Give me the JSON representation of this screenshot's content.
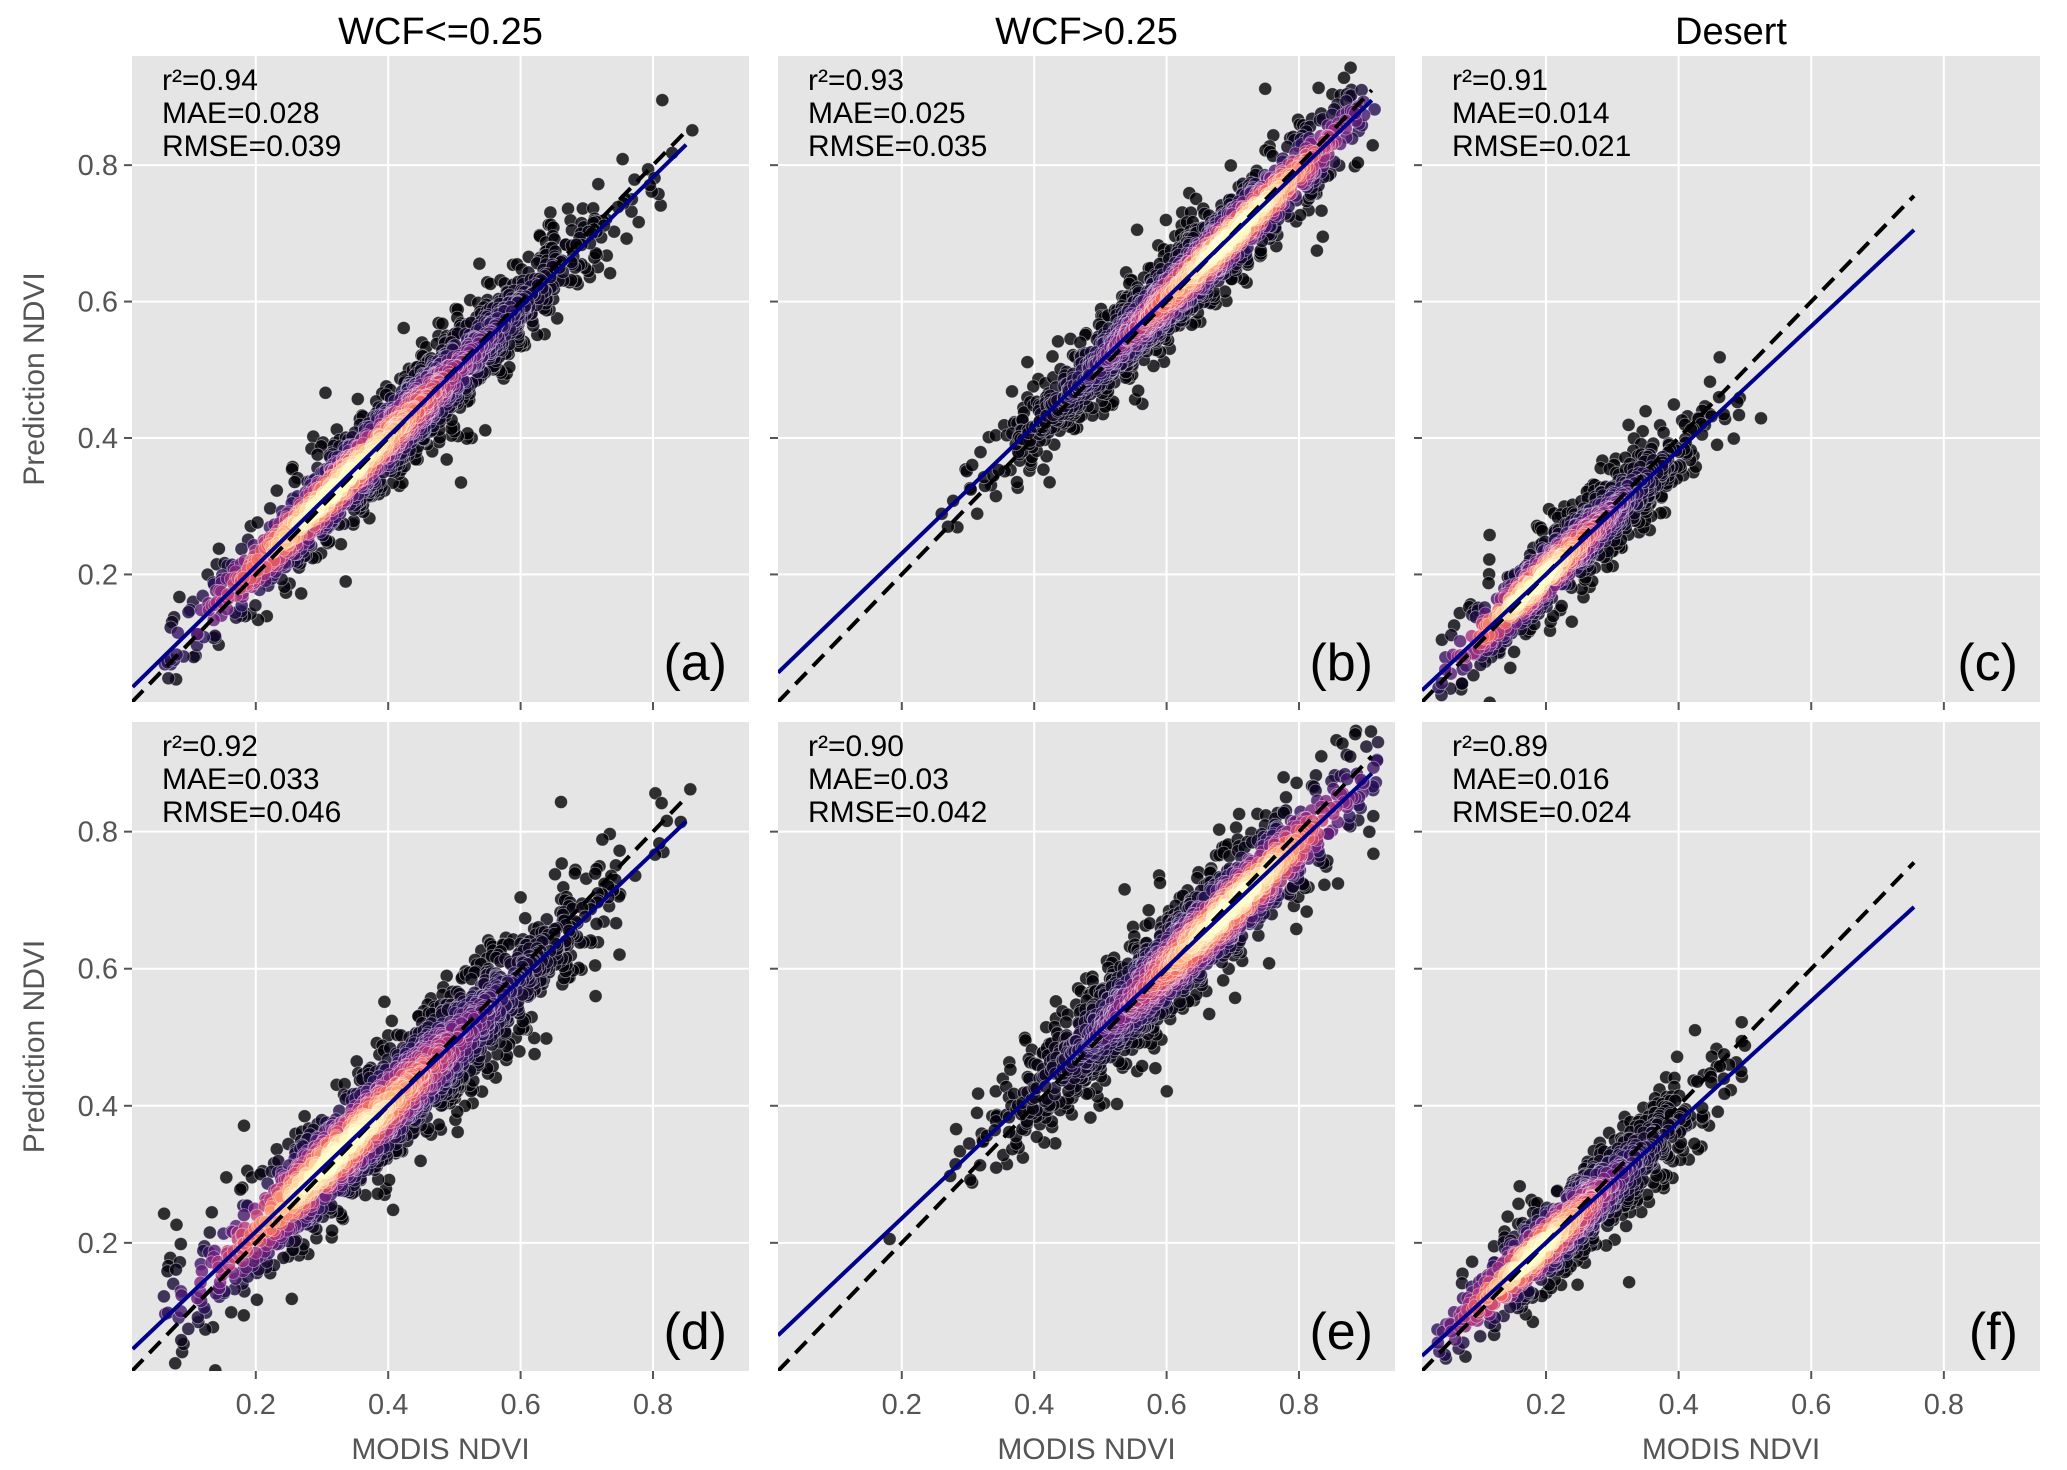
{
  "chart_data": {
    "type": "scatter",
    "layout": "2 rows x 3 columns, shared axes",
    "column_titles": [
      "WCF<=0.25",
      "WCF>0.25",
      "Desert"
    ],
    "xlabel": "MODIS NDVI",
    "ylabel": "Prediction NDVI",
    "xlim": [
      0.013,
      0.945
    ],
    "ylim": [
      0.013,
      0.96
    ],
    "xticks": [
      "0.2",
      "0.4",
      "0.6",
      "0.8"
    ],
    "yticks": [
      "0.2",
      "0.4",
      "0.6",
      "0.8"
    ],
    "grid": true,
    "background": "#e5e5e5",
    "point_colormap": "magma (point density)",
    "fit_line_color": "#00008b",
    "identity_line": "black dashed 1:1",
    "panels": [
      {
        "label": "(a)",
        "r2": "r²=0.94",
        "mae": "MAE=0.028",
        "rmse": "RMSE=0.039",
        "fit": [
          [
            0.014,
            0.035
          ],
          [
            0.85,
            0.83
          ]
        ],
        "x_max": 0.85
      },
      {
        "label": "(b)",
        "r2": "r²=0.93",
        "mae": "MAE=0.025",
        "rmse": "RMSE=0.035",
        "fit": [
          [
            0.013,
            0.056
          ],
          [
            0.91,
            0.895
          ]
        ],
        "x_max": 0.91
      },
      {
        "label": "(c)",
        "r2": "r²=0.91",
        "mae": "MAE=0.014",
        "rmse": "RMSE=0.021",
        "fit": [
          [
            0.013,
            0.03
          ],
          [
            0.755,
            0.705
          ]
        ],
        "x_max": 0.755
      },
      {
        "label": "(d)",
        "r2": "r²=0.92",
        "mae": "MAE=0.033",
        "rmse": "RMSE=0.046",
        "fit": [
          [
            0.014,
            0.045
          ],
          [
            0.85,
            0.815
          ]
        ],
        "x_max": 0.85
      },
      {
        "label": "(e)",
        "r2": "r²=0.90",
        "mae": "MAE=0.03",
        "rmse": "RMSE=0.042",
        "fit": [
          [
            0.013,
            0.065
          ],
          [
            0.91,
            0.885
          ]
        ],
        "x_max": 0.91
      },
      {
        "label": "(f)",
        "r2": "r²=0.89",
        "mae": "MAE=0.016",
        "rmse": "RMSE=0.024",
        "fit": [
          [
            0.013,
            0.035
          ],
          [
            0.755,
            0.69
          ]
        ],
        "x_max": 0.755
      }
    ]
  }
}
